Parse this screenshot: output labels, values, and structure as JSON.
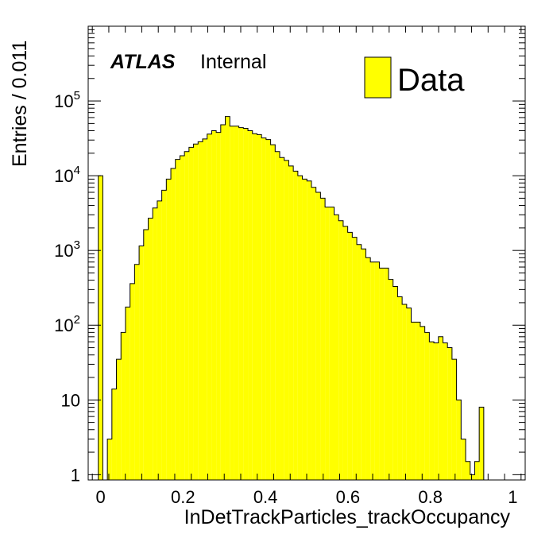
{
  "chart_data": {
    "type": "bar",
    "experiment": "ATLAS",
    "status": "Internal",
    "xlabel": "InDetTrackParticles_trackOccupancy",
    "ylabel": "Entries / 0.011",
    "xlim": [
      -0.03,
      1.03
    ],
    "ylim": [
      0.85,
      1000000
    ],
    "yscale": "log",
    "grid": false,
    "legend_position": "top-right",
    "xticks": [
      "0",
      "0.2",
      "0.4",
      "0.6",
      "0.8",
      "1"
    ],
    "xtick_values": [
      0,
      0.2,
      0.4,
      0.6,
      0.8,
      1
    ],
    "yticks": [
      {
        "base": "10",
        "exp": "",
        "value": 1
      },
      {
        "base": "10",
        "exp": "",
        "value": 10
      },
      {
        "base": "10",
        "exp": "2",
        "value": 100
      },
      {
        "base": "10",
        "exp": "3",
        "value": 1000
      },
      {
        "base": "10",
        "exp": "4",
        "value": 10000
      },
      {
        "base": "10",
        "exp": "5",
        "value": 100000
      }
    ],
    "series": [
      {
        "name": "Data",
        "color": "#ffff00",
        "edge_color": "#000000",
        "bin_start": -0.0055,
        "bin_width": 0.011,
        "values": [
          10000,
          0,
          3,
          14,
          35,
          80,
          175,
          360,
          650,
          1150,
          1900,
          2700,
          3700,
          4600,
          6400,
          9000,
          12500,
          16500,
          18500,
          21000,
          24000,
          26500,
          28500,
          31000,
          36000,
          40000,
          38000,
          48000,
          62000,
          46000,
          46000,
          44000,
          43000,
          40000,
          36500,
          35500,
          32000,
          30500,
          26000,
          21000,
          17500,
          16000,
          13500,
          11500,
          10000,
          9000,
          8500,
          7000,
          6000,
          5000,
          3800,
          3800,
          3000,
          2500,
          2100,
          1750,
          1500,
          1200,
          1050,
          800,
          700,
          700,
          580,
          580,
          410,
          330,
          240,
          190,
          170,
          110,
          110,
          96,
          80,
          60,
          58,
          70,
          58,
          50,
          35,
          10,
          3,
          1.5,
          1,
          1.5,
          8,
          0,
          0,
          0,
          0,
          0,
          0,
          0,
          0,
          0
        ]
      }
    ]
  }
}
